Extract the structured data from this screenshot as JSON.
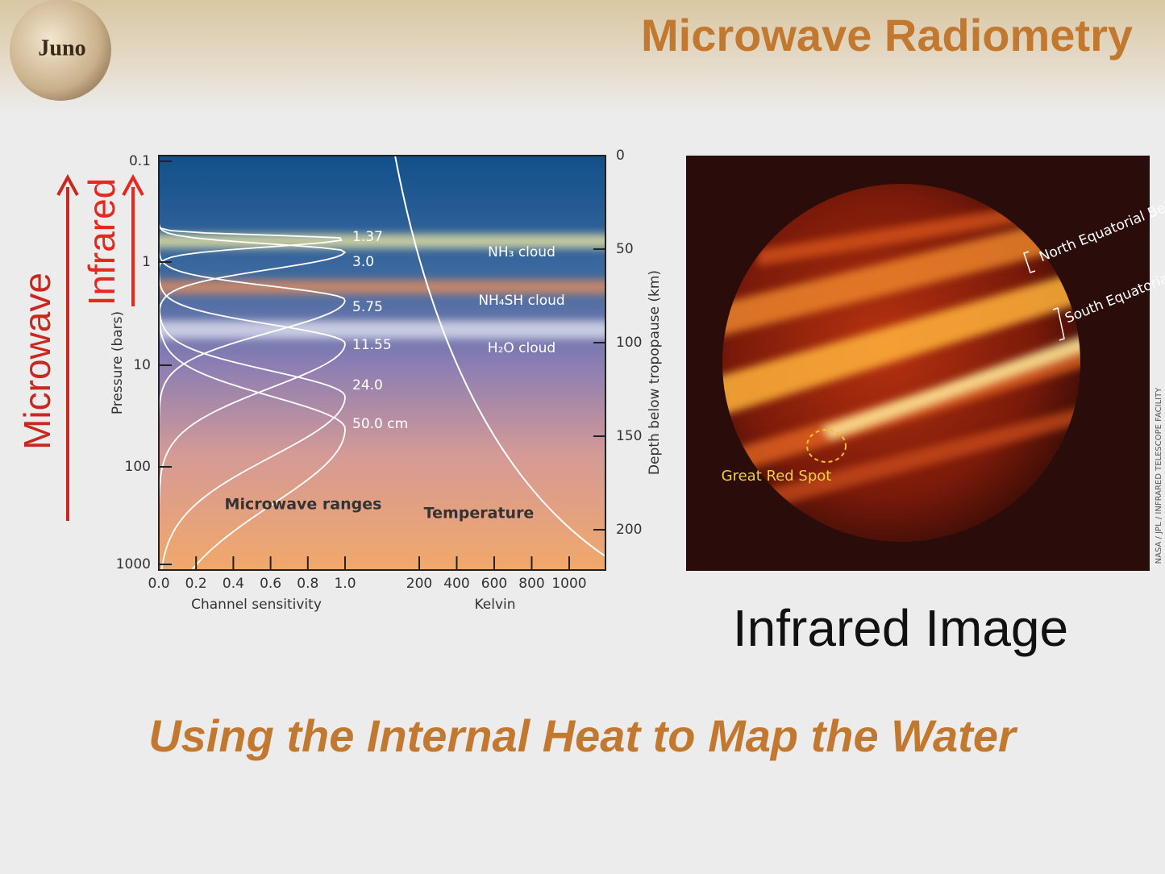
{
  "logo": "Juno",
  "title": "Microwave Radiometry",
  "side_labels": {
    "microwave": "Microwave",
    "infrared": "Infrared"
  },
  "figure": {
    "pressure_axis": {
      "label": "Pressure (bars)",
      "ticks": [
        "0.1",
        "1",
        "10",
        "100",
        "1000"
      ]
    },
    "depth_axis": {
      "label": "Depth below tropopause (km)",
      "ticks": [
        "0",
        "50",
        "100",
        "150",
        "200"
      ]
    },
    "sensitivity_axis": {
      "label": "Channel sensitivity",
      "ticks": [
        "0.0",
        "0.2",
        "0.4",
        "0.6",
        "0.8",
        "1.0"
      ]
    },
    "kelvin_axis": {
      "label": "Kelvin",
      "ticks": [
        "200",
        "400",
        "600",
        "800",
        "1000"
      ]
    },
    "channels": [
      "1.37",
      "3.0",
      "5.75",
      "11.55",
      "24.0",
      "50.0 cm"
    ],
    "clouds": [
      "NH₃ cloud",
      "NH₄SH cloud",
      "H₂O cloud"
    ],
    "microwave_ranges": "Microwave ranges",
    "temperature": "Temperature"
  },
  "image": {
    "belts": [
      "North Equatorial Belt",
      "South Equatorial Belt"
    ],
    "spot": "Great Red Spot",
    "credit": "NASA / JPL / INFRARED TELESCOPE FACILITY",
    "caption": "Infrared Image"
  },
  "subtitle": "Using the Internal Heat to Map the Water"
}
